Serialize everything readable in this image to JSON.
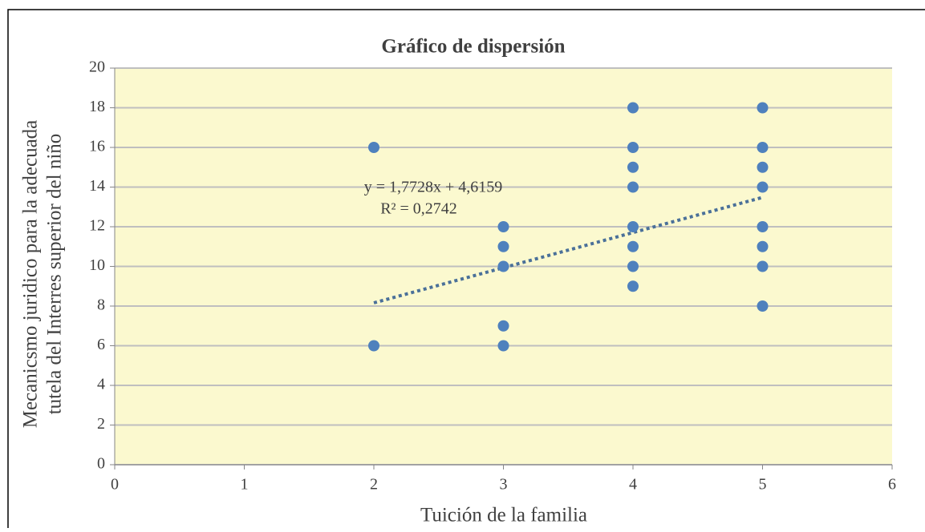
{
  "chart_data": {
    "type": "scatter",
    "title": "Gráfico  de dispersión",
    "xlabel": "Tuición de la familia",
    "ylabel": [
      "Mecanicsmo juridico para la adecuada",
      "tutela del Interres superior del niño"
    ],
    "xlim": [
      0,
      6
    ],
    "xticks": [
      0,
      1,
      2,
      3,
      4,
      5,
      6
    ],
    "ylim": [
      0,
      20
    ],
    "yticks": [
      0,
      2,
      4,
      6,
      8,
      10,
      12,
      14,
      16,
      18,
      20
    ],
    "grid": true,
    "background": "#fbf9cf",
    "series": [
      {
        "color": "#4f81bd",
        "x": [
          2,
          2,
          3,
          3,
          3,
          3,
          3,
          4,
          4,
          4,
          4,
          4,
          4,
          4,
          4,
          5,
          5,
          5,
          5,
          5,
          5,
          5,
          5
        ],
        "values": [
          16,
          6,
          12,
          11,
          10,
          7,
          6,
          18,
          16,
          15,
          14,
          12,
          11,
          10,
          9,
          18,
          16,
          15,
          14,
          12,
          11,
          10,
          8
        ]
      }
    ],
    "trendline": {
      "label": "y = 1,7728x  + 4,6159",
      "r2_label": "R² = 0,2742",
      "slope": 1.7728,
      "intercept": 4.6159,
      "x": [
        2,
        5
      ],
      "color": "#4a7099"
    }
  }
}
